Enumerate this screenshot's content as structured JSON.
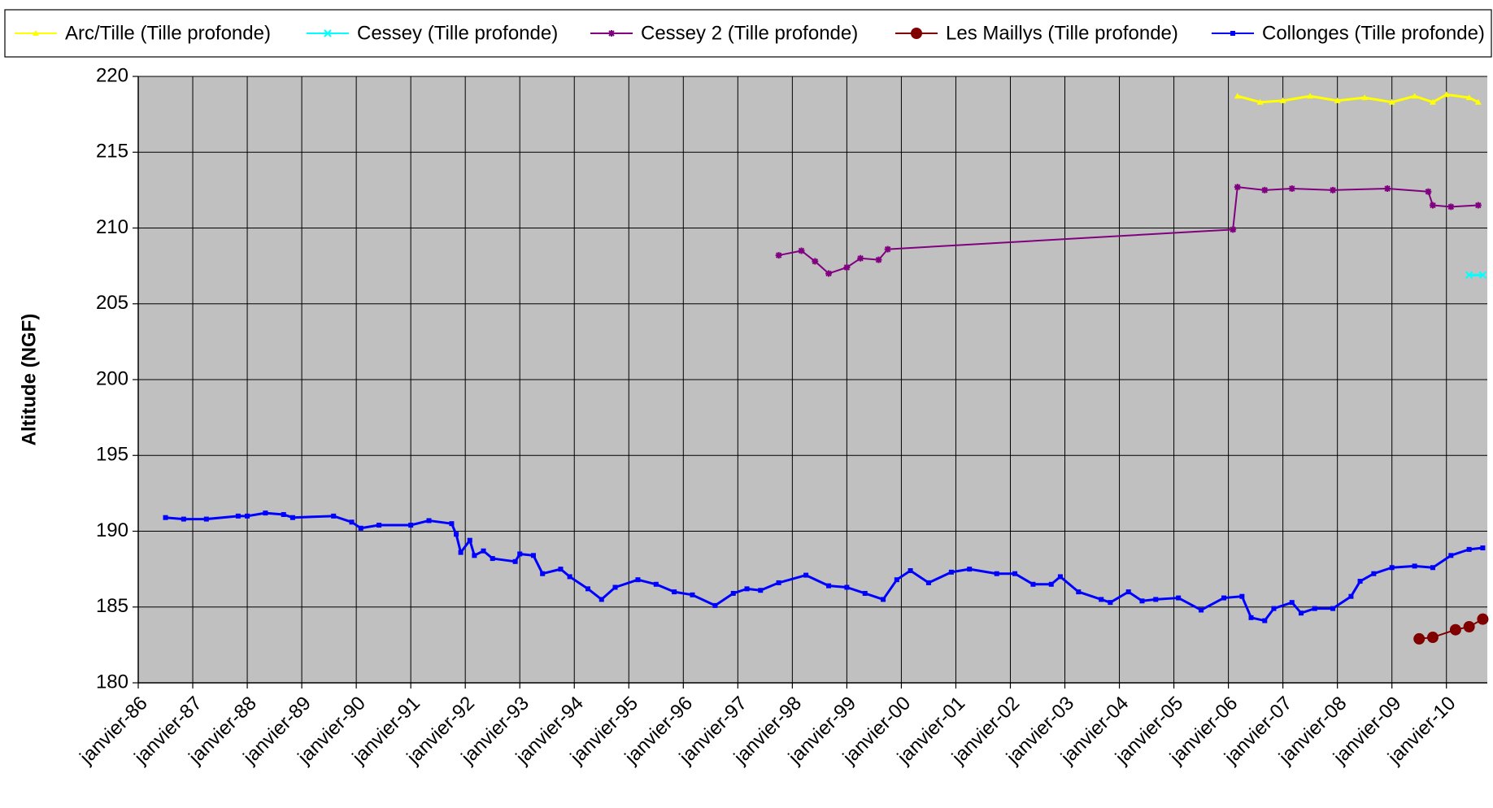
{
  "chart_data": {
    "type": "line",
    "y_label": "Altitude (NGF)",
    "ylim": [
      180,
      220
    ],
    "yticks": [
      180,
      185,
      190,
      195,
      200,
      205,
      210,
      215,
      220
    ],
    "xlim": [
      "1986-01",
      "2010-10"
    ],
    "xticks": [
      {
        "value": "1986-01",
        "label": "janvier-86"
      },
      {
        "value": "1987-01",
        "label": "janvier-87"
      },
      {
        "value": "1988-01",
        "label": "janvier-88"
      },
      {
        "value": "1989-01",
        "label": "janvier-89"
      },
      {
        "value": "1990-01",
        "label": "janvier-90"
      },
      {
        "value": "1991-01",
        "label": "janvier-91"
      },
      {
        "value": "1992-01",
        "label": "janvier-92"
      },
      {
        "value": "1993-01",
        "label": "janvier-93"
      },
      {
        "value": "1994-01",
        "label": "janvier-94"
      },
      {
        "value": "1995-01",
        "label": "janvier-95"
      },
      {
        "value": "1996-01",
        "label": "janvier-96"
      },
      {
        "value": "1997-01",
        "label": "janvier-97"
      },
      {
        "value": "1998-01",
        "label": "janvier-98"
      },
      {
        "value": "1999-01",
        "label": "janvier-99"
      },
      {
        "value": "2000-01",
        "label": "janvier-00"
      },
      {
        "value": "2001-01",
        "label": "janvier-01"
      },
      {
        "value": "2002-01",
        "label": "janvier-02"
      },
      {
        "value": "2003-01",
        "label": "janvier-03"
      },
      {
        "value": "2004-01",
        "label": "janvier-04"
      },
      {
        "value": "2005-01",
        "label": "janvier-05"
      },
      {
        "value": "2006-01",
        "label": "janvier-06"
      },
      {
        "value": "2007-01",
        "label": "janvier-07"
      },
      {
        "value": "2008-01",
        "label": "janvier-08"
      },
      {
        "value": "2009-01",
        "label": "janvier-09"
      },
      {
        "value": "2010-01",
        "label": "janvier-10"
      }
    ],
    "grid": true,
    "legend": "top",
    "series": [
      {
        "name": "Arc/Tille (Tille profonde)",
        "color": "#ffff00",
        "marker": "triangle",
        "x": [
          "2006-03",
          "2006-08",
          "2007-01",
          "2007-07",
          "2008-01",
          "2008-07",
          "2009-01",
          "2009-06",
          "2009-10",
          "2010-01",
          "2010-06",
          "2010-08"
        ],
        "values": [
          218.7,
          218.3,
          218.4,
          218.7,
          218.4,
          218.6,
          218.3,
          218.7,
          218.3,
          218.8,
          218.6,
          218.3
        ]
      },
      {
        "name": "Cessey (Tille profonde)",
        "color": "#00ffff",
        "marker": "x",
        "x": [
          "2010-06",
          "2010-09"
        ],
        "values": [
          206.9,
          206.9
        ]
      },
      {
        "name": "Cessey 2 (Tille profonde)",
        "color": "#800080",
        "marker": "star",
        "x": [
          "1997-10",
          "1998-03",
          "1998-06",
          "1998-09",
          "1999-01",
          "1999-04",
          "1999-08",
          "1999-10",
          "2006-02",
          "2006-03",
          "2006-09",
          "2007-03",
          "2007-12",
          "2008-12",
          "2009-09",
          "2009-10",
          "2010-02",
          "2010-08"
        ],
        "values": [
          208.2,
          208.5,
          207.8,
          207.0,
          207.4,
          208.0,
          207.9,
          208.6,
          209.9,
          212.7,
          212.5,
          212.6,
          212.5,
          212.6,
          212.4,
          211.5,
          211.4,
          211.5
        ]
      },
      {
        "name": "Les Maillys (Tille profonde)",
        "color": "#800000",
        "marker": "circle",
        "x": [
          "2009-07",
          "2009-10",
          "2010-03",
          "2010-06",
          "2010-09"
        ],
        "values": [
          182.9,
          183.0,
          183.5,
          183.7,
          184.2
        ]
      },
      {
        "name": "Collonges (Tille profonde)",
        "color": "#0000ff",
        "marker": "square",
        "x": [
          "1986-07",
          "1986-11",
          "1987-04",
          "1987-11",
          "1988-01",
          "1988-05",
          "1988-09",
          "1988-11",
          "1989-08",
          "1989-12",
          "1990-02",
          "1990-06",
          "1991-01",
          "1991-05",
          "1991-10",
          "1991-11",
          "1991-12",
          "1992-02",
          "1992-03",
          "1992-05",
          "1992-07",
          "1992-12",
          "1993-01",
          "1993-04",
          "1993-06",
          "1993-10",
          "1993-12",
          "1994-04",
          "1994-07",
          "1994-10",
          "1995-03",
          "1995-07",
          "1995-11",
          "1996-03",
          "1996-08",
          "1996-12",
          "1997-03",
          "1997-06",
          "1997-10",
          "1998-04",
          "1998-09",
          "1999-01",
          "1999-05",
          "1999-09",
          "1999-12",
          "2000-03",
          "2000-07",
          "2000-12",
          "2001-04",
          "2001-10",
          "2002-02",
          "2002-06",
          "2002-10",
          "2002-12",
          "2003-04",
          "2003-09",
          "2003-11",
          "2004-03",
          "2004-06",
          "2004-09",
          "2005-02",
          "2005-07",
          "2005-12",
          "2006-04",
          "2006-06",
          "2006-09",
          "2006-11",
          "2007-03",
          "2007-05",
          "2007-08",
          "2007-12",
          "2008-04",
          "2008-06",
          "2008-09",
          "2009-01",
          "2009-06",
          "2009-10",
          "2010-02",
          "2010-06",
          "2010-09"
        ],
        "values": [
          190.9,
          190.8,
          190.8,
          191.0,
          191.0,
          191.2,
          191.1,
          190.9,
          191.0,
          190.6,
          190.2,
          190.4,
          190.4,
          190.7,
          190.5,
          189.8,
          188.6,
          189.4,
          188.4,
          188.7,
          188.2,
          188.0,
          188.5,
          188.4,
          187.2,
          187.5,
          187.0,
          186.2,
          185.5,
          186.3,
          186.8,
          186.5,
          186.0,
          185.8,
          185.1,
          185.9,
          186.2,
          186.1,
          186.6,
          187.1,
          186.4,
          186.3,
          185.9,
          185.5,
          186.8,
          187.4,
          186.6,
          187.3,
          187.5,
          187.2,
          187.2,
          186.5,
          186.5,
          187.0,
          186.0,
          185.5,
          185.3,
          186.0,
          185.4,
          185.5,
          185.6,
          184.8,
          185.6,
          185.7,
          184.3,
          184.1,
          184.9,
          185.3,
          184.6,
          184.9,
          184.9,
          185.7,
          186.7,
          187.2,
          187.6,
          187.7,
          187.6,
          188.4,
          188.8,
          188.9
        ]
      }
    ]
  }
}
